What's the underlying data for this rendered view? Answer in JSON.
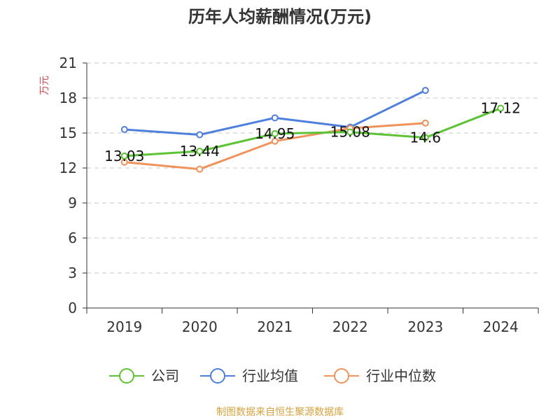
{
  "title": "历年人均薪酬情况(万元)",
  "source": "制图数据来自恒生聚源数据库",
  "chart_data": {
    "type": "line",
    "title": "历年人均薪酬情况(万元)",
    "ylabel": "万元",
    "xlabel": "",
    "categories": [
      "2019",
      "2020",
      "2021",
      "2022",
      "2023",
      "2024"
    ],
    "ylim": [
      0,
      21
    ],
    "yticks": [
      0,
      3,
      6,
      9,
      12,
      15,
      18,
      21
    ],
    "grid": true,
    "legend_position": "bottom",
    "series": [
      {
        "name": "公司",
        "color": "#5cc334",
        "values": [
          13.03,
          13.44,
          14.95,
          15.08,
          14.6,
          17.12
        ],
        "labels": [
          "13.03",
          "13.44",
          "14.95",
          "15.08",
          "14.6",
          "17.12"
        ]
      },
      {
        "name": "行业均值",
        "color": "#4e7fdc",
        "values": [
          15.3,
          14.85,
          16.3,
          15.5,
          18.65,
          null
        ]
      },
      {
        "name": "行业中位数",
        "color": "#f0925a",
        "values": [
          12.5,
          11.9,
          14.3,
          15.4,
          15.85,
          null
        ]
      }
    ]
  }
}
